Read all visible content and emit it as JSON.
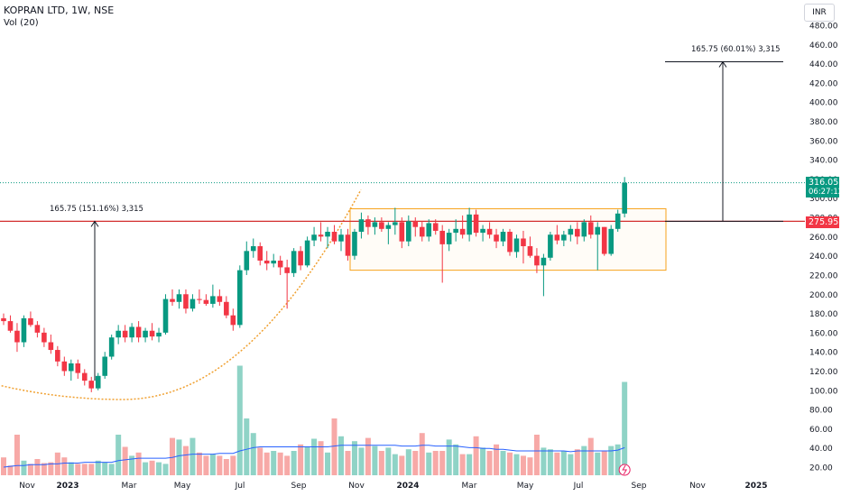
{
  "header": {
    "title": "KOPRAN LTD, 1W, NSE",
    "volume_label": "Vol (20)",
    "currency": "INR"
  },
  "price_tags": {
    "last_price": "316.05",
    "countdown": "06:27:12",
    "level_price": "275.95"
  },
  "annotations": {
    "left_measure": "165.75 (151.16%) 3,315",
    "right_measure": "165.75 (60.01%) 3,315"
  },
  "colors": {
    "up": "#089981",
    "down": "#f23645",
    "vol_up": "#8fd3c6",
    "vol_down": "#f7a9a7",
    "vol_ma": "#2962ff",
    "box": "#f7a21b",
    "cup_curve": "#f0a030",
    "level_line": "#d32f2f",
    "last_price_line": "#089981"
  },
  "chart_data": {
    "type": "candlestick",
    "title": "KOPRAN LTD, 1W, NSE",
    "y_axis": {
      "min": 20,
      "max": 480,
      "step": 20,
      "tick_labels": [
        "480.00",
        "460.00",
        "440.00",
        "420.00",
        "400.00",
        "380.00",
        "360.00",
        "340.00",
        "320.00",
        "300.00",
        "280.00",
        "260.00",
        "240.00",
        "220.00",
        "200.00",
        "180.00",
        "160.00",
        "140.00",
        "120.00",
        "100.00",
        "80.00",
        "60.00",
        "40.00",
        "20.00"
      ]
    },
    "x_axis": {
      "tick_labels": [
        "Nov",
        "2023",
        "Mar",
        "May",
        "Jul",
        "Sep",
        "Nov",
        "2024",
        "Mar",
        "May",
        "Jul",
        "Sep",
        "Nov",
        "2025"
      ]
    },
    "last_price": 316.05,
    "resistance_level": 275.95,
    "consolidation_box": {
      "top": 289,
      "bottom": 225
    },
    "target_level": 442,
    "candles": [
      [
        175,
        180,
        168,
        172
      ],
      [
        172,
        178,
        160,
        162
      ],
      [
        162,
        170,
        140,
        150
      ],
      [
        150,
        178,
        145,
        175
      ],
      [
        175,
        182,
        166,
        168
      ],
      [
        168,
        172,
        155,
        160
      ],
      [
        160,
        165,
        145,
        150
      ],
      [
        150,
        158,
        138,
        142
      ],
      [
        142,
        146,
        125,
        130
      ],
      [
        130,
        135,
        115,
        120
      ],
      [
        120,
        132,
        110,
        128
      ],
      [
        128,
        132,
        112,
        118
      ],
      [
        118,
        122,
        105,
        110
      ],
      [
        110,
        114,
        98,
        102
      ],
      [
        102,
        118,
        100,
        115
      ],
      [
        115,
        140,
        112,
        135
      ],
      [
        135,
        158,
        132,
        155
      ],
      [
        155,
        168,
        148,
        162
      ],
      [
        162,
        168,
        150,
        155
      ],
      [
        155,
        170,
        150,
        166
      ],
      [
        166,
        172,
        150,
        155
      ],
      [
        155,
        165,
        150,
        162
      ],
      [
        162,
        170,
        152,
        156
      ],
      [
        156,
        165,
        150,
        160
      ],
      [
        160,
        200,
        158,
        195
      ],
      [
        195,
        205,
        188,
        192
      ],
      [
        192,
        205,
        185,
        200
      ],
      [
        200,
        205,
        180,
        185
      ],
      [
        185,
        200,
        182,
        195
      ],
      [
        195,
        205,
        190,
        194
      ],
      [
        194,
        200,
        188,
        190
      ],
      [
        190,
        210,
        186,
        198
      ],
      [
        198,
        205,
        188,
        192
      ],
      [
        192,
        198,
        175,
        178
      ],
      [
        178,
        185,
        162,
        168
      ],
      [
        168,
        230,
        165,
        225
      ],
      [
        225,
        255,
        220,
        245
      ],
      [
        245,
        258,
        238,
        250
      ],
      [
        250,
        254,
        230,
        235
      ],
      [
        235,
        245,
        225,
        232
      ],
      [
        232,
        242,
        228,
        235
      ],
      [
        235,
        240,
        220,
        228
      ],
      [
        228,
        236,
        185,
        222
      ],
      [
        222,
        248,
        218,
        245
      ],
      [
        245,
        250,
        225,
        230
      ],
      [
        230,
        260,
        228,
        256
      ],
      [
        256,
        270,
        250,
        262
      ],
      [
        262,
        275,
        255,
        260
      ],
      [
        260,
        270,
        248,
        265
      ],
      [
        265,
        272,
        252,
        255
      ],
      [
        255,
        268,
        245,
        262
      ],
      [
        262,
        268,
        235,
        240
      ],
      [
        240,
        268,
        236,
        265
      ],
      [
        265,
        285,
        258,
        278
      ],
      [
        278,
        282,
        262,
        270
      ],
      [
        270,
        280,
        262,
        275
      ],
      [
        275,
        280,
        265,
        268
      ],
      [
        268,
        275,
        252,
        272
      ],
      [
        272,
        290,
        262,
        275
      ],
      [
        275,
        280,
        248,
        255
      ],
      [
        255,
        282,
        250,
        276
      ],
      [
        276,
        280,
        260,
        270
      ],
      [
        270,
        276,
        255,
        260
      ],
      [
        260,
        278,
        255,
        274
      ],
      [
        274,
        278,
        262,
        266
      ],
      [
        266,
        272,
        212,
        252
      ],
      [
        252,
        268,
        245,
        264
      ],
      [
        264,
        278,
        255,
        268
      ],
      [
        268,
        282,
        258,
        262
      ],
      [
        262,
        290,
        255,
        283
      ],
      [
        283,
        288,
        260,
        264
      ],
      [
        264,
        272,
        255,
        268
      ],
      [
        268,
        275,
        258,
        262
      ],
      [
        262,
        268,
        248,
        255
      ],
      [
        255,
        268,
        250,
        265
      ],
      [
        265,
        268,
        240,
        244
      ],
      [
        244,
        262,
        238,
        258
      ],
      [
        258,
        266,
        232,
        250
      ],
      [
        250,
        260,
        238,
        240
      ],
      [
        240,
        248,
        222,
        230
      ],
      [
        230,
        242,
        198,
        238
      ],
      [
        238,
        265,
        235,
        262
      ],
      [
        262,
        272,
        252,
        256
      ],
      [
        256,
        266,
        250,
        262
      ],
      [
        262,
        272,
        255,
        268
      ],
      [
        268,
        275,
        252,
        260
      ],
      [
        260,
        278,
        255,
        275
      ],
      [
        275,
        282,
        258,
        262
      ],
      [
        262,
        275,
        225,
        270
      ],
      [
        270,
        270,
        240,
        242
      ],
      [
        242,
        272,
        240,
        268
      ],
      [
        268,
        288,
        265,
        284
      ],
      [
        284,
        322,
        280,
        316.05
      ]
    ],
    "volume": [
      22,
      12,
      50,
      18,
      14,
      20,
      15,
      16,
      28,
      22,
      16,
      14,
      14,
      14,
      18,
      16,
      14,
      50,
      35,
      24,
      28,
      16,
      18,
      16,
      14,
      46,
      44,
      36,
      46,
      28,
      24,
      26,
      24,
      20,
      24,
      135,
      70,
      52,
      34,
      28,
      30,
      28,
      24,
      30,
      38,
      35,
      45,
      42,
      28,
      70,
      48,
      30,
      42,
      34,
      46,
      36,
      30,
      34,
      26,
      24,
      32,
      30,
      52,
      28,
      30,
      30,
      44,
      38,
      26,
      26,
      48,
      34,
      30,
      38,
      30,
      28,
      26,
      24,
      22,
      50,
      34,
      32,
      28,
      30,
      26,
      32,
      36,
      46,
      28,
      30,
      36,
      38,
      115
    ],
    "volume_ma": [
      10,
      11,
      12,
      12,
      13,
      13,
      13,
      14,
      14,
      15,
      15,
      15,
      16,
      16,
      16,
      16,
      16,
      18,
      19,
      20,
      21,
      21,
      21,
      21,
      21,
      22,
      24,
      25,
      26,
      26,
      26,
      26,
      27,
      27,
      27,
      30,
      32,
      34,
      35,
      35,
      35,
      35,
      35,
      35,
      35,
      35,
      35,
      35,
      35,
      36,
      37,
      37,
      37,
      37,
      37,
      37,
      37,
      37,
      37,
      36,
      36,
      36,
      37,
      37,
      36,
      36,
      36,
      36,
      35,
      34,
      34,
      33,
      33,
      32,
      32,
      31,
      30,
      30,
      30,
      30,
      30,
      30,
      30,
      30,
      29,
      30,
      30,
      30,
      30,
      30,
      30,
      31,
      34
    ]
  }
}
